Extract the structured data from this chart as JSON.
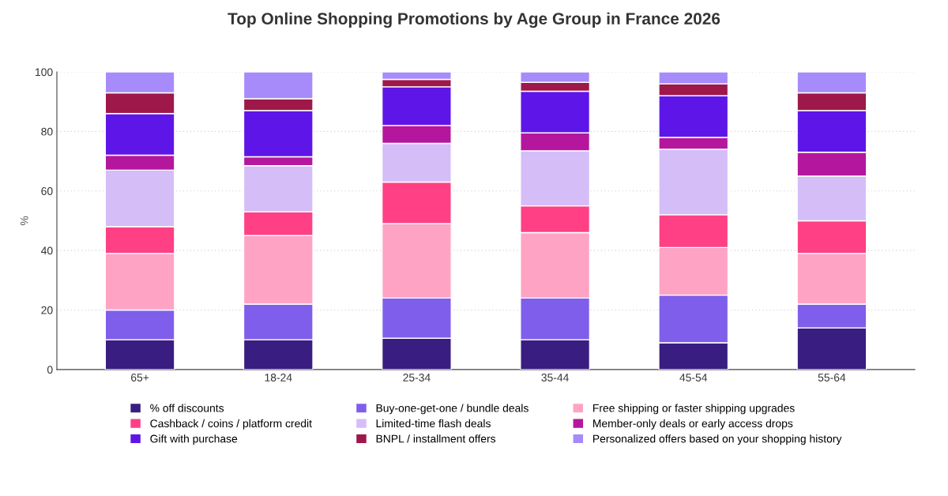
{
  "chart_data": {
    "type": "bar",
    "title": "Top Online Shopping Promotions by Age Group in France 2026",
    "ylabel": "%",
    "categories": [
      "65+",
      "18-24",
      "25-34",
      "35-44",
      "45-54",
      "55-64"
    ],
    "stacked": true,
    "ylim": [
      0,
      100
    ],
    "yticks": [
      0,
      20,
      40,
      60,
      80,
      100
    ],
    "grid": "y",
    "legend": "bottom",
    "series": [
      {
        "name": "% off discounts",
        "color": "#391d80",
        "values": [
          10,
          10,
          10.5,
          10,
          9,
          14
        ]
      },
      {
        "name": "Buy-one-get-one / bundle deals",
        "color": "#7f5eeb",
        "values": [
          10,
          12,
          13.5,
          14,
          16,
          8
        ]
      },
      {
        "name": "Free shipping or faster shipping upgrades",
        "color": "#ffa3c4",
        "values": [
          19,
          23,
          25,
          22,
          16,
          17
        ]
      },
      {
        "name": "Cashback / coins / platform credit",
        "color": "#ff4085",
        "values": [
          9,
          8,
          14,
          9,
          11,
          11
        ]
      },
      {
        "name": "Limited-time flash deals",
        "color": "#d5bdf8",
        "values": [
          19,
          15.5,
          13,
          18.5,
          22,
          15
        ]
      },
      {
        "name": "Member-only deals or early access drops",
        "color": "#b4179d",
        "values": [
          5,
          3,
          6,
          6,
          4,
          8
        ]
      },
      {
        "name": "Gift with purchase",
        "color": "#5e16e8",
        "values": [
          14,
          15.5,
          13,
          14,
          14,
          14
        ]
      },
      {
        "name": "BNPL / installment offers",
        "color": "#9e184a",
        "values": [
          7,
          4,
          2.5,
          3,
          4,
          6
        ]
      },
      {
        "name": "Personalized offers based on your shopping history",
        "color": "#a78bfa",
        "values": [
          7,
          9,
          2.5,
          3.5,
          4,
          7
        ]
      }
    ]
  }
}
